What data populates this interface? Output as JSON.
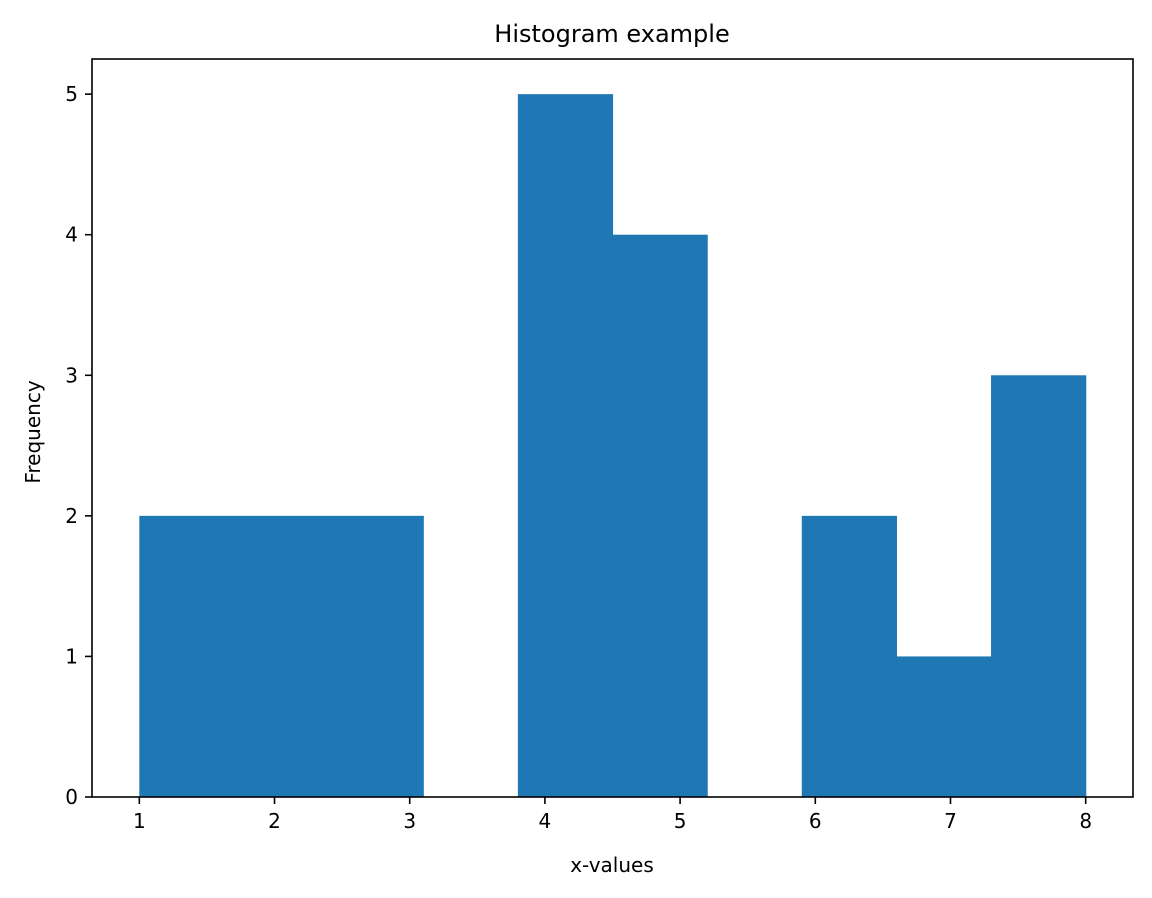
{
  "chart_data": {
    "type": "bar",
    "title": "Histogram example",
    "xlabel": "x-values",
    "ylabel": "Frequency",
    "xlim": [
      0.65,
      8.35
    ],
    "ylim": [
      0,
      5.25
    ],
    "xticks": [
      1,
      2,
      3,
      4,
      5,
      6,
      7,
      8
    ],
    "yticks": [
      0,
      1,
      2,
      3,
      4,
      5
    ],
    "grid": false,
    "bar_color": "#1f77b4",
    "bins": [
      {
        "x0": 1.0,
        "x1": 1.7,
        "count": 2
      },
      {
        "x0": 1.7,
        "x1": 2.4,
        "count": 2
      },
      {
        "x0": 2.4,
        "x1": 3.1,
        "count": 2
      },
      {
        "x0": 3.1,
        "x1": 3.8,
        "count": 0
      },
      {
        "x0": 3.8,
        "x1": 4.5,
        "count": 5
      },
      {
        "x0": 4.5,
        "x1": 5.2,
        "count": 4
      },
      {
        "x0": 5.2,
        "x1": 5.9,
        "count": 0
      },
      {
        "x0": 5.9,
        "x1": 6.6,
        "count": 2
      },
      {
        "x0": 6.6,
        "x1": 7.3,
        "count": 1
      },
      {
        "x0": 7.3,
        "x1": 8.0,
        "count": 3
      }
    ]
  }
}
